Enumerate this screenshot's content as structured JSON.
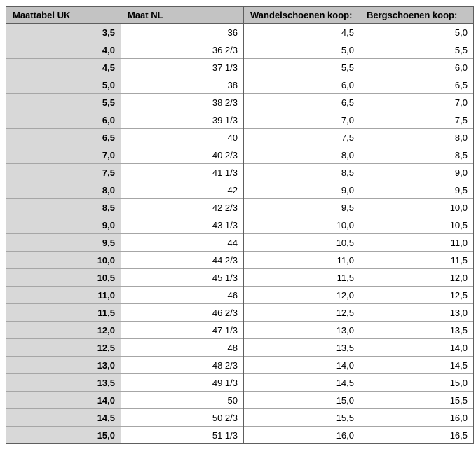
{
  "page": {
    "background": "#ffffff"
  },
  "table": {
    "columns": [
      "Maattabel UK",
      "Maat NL",
      "Wandelschoenen koop:",
      "Bergschoenen koop:"
    ],
    "rows": [
      [
        "3,5",
        "36",
        "4,5",
        "5,0"
      ],
      [
        "4,0",
        "36 2/3",
        "5,0",
        "5,5"
      ],
      [
        "4,5",
        "37 1/3",
        "5,5",
        "6,0"
      ],
      [
        "5,0",
        "38",
        "6,0",
        "6,5"
      ],
      [
        "5,5",
        "38 2/3",
        "6,5",
        "7,0"
      ],
      [
        "6,0",
        "39 1/3",
        "7,0",
        "7,5"
      ],
      [
        "6,5",
        "40",
        "7,5",
        "8,0"
      ],
      [
        "7,0",
        "40 2/3",
        "8,0",
        "8,5"
      ],
      [
        "7,5",
        "41 1/3",
        "8,5",
        "9,0"
      ],
      [
        "8,0",
        "42",
        "9,0",
        "9,5"
      ],
      [
        "8,5",
        "42 2/3",
        "9,5",
        "10,0"
      ],
      [
        "9,0",
        "43 1/3",
        "10,0",
        "10,5"
      ],
      [
        "9,5",
        "44",
        "10,5",
        "11,0"
      ],
      [
        "10,0",
        "44 2/3",
        "11,0",
        "11,5"
      ],
      [
        "10,5",
        "45 1/3",
        "11,5",
        "12,0"
      ],
      [
        "11,0",
        "46",
        "12,0",
        "12,5"
      ],
      [
        "11,5",
        "46 2/3",
        "12,5",
        "13,0"
      ],
      [
        "12,0",
        "47 1/3",
        "13,0",
        "13,5"
      ],
      [
        "12,5",
        "48",
        "13,5",
        "14,0"
      ],
      [
        "13,0",
        "48 2/3",
        "14,0",
        "14,5"
      ],
      [
        "13,5",
        "49 1/3",
        "14,5",
        "15,0"
      ],
      [
        "14,0",
        "50",
        "15,0",
        "15,5"
      ],
      [
        "14,5",
        "50 2/3",
        "15,5",
        "16,0"
      ],
      [
        "15,0",
        "51 1/3",
        "16,0",
        "16,5"
      ]
    ],
    "colors": {
      "header_bg": "#c3c3c3",
      "row_label_bg": "#d8d8d8",
      "cell_bg": "#ffffff",
      "border_dark": "#5e5e5e",
      "border_light": "#a6a6a6",
      "text": "#000000"
    }
  }
}
